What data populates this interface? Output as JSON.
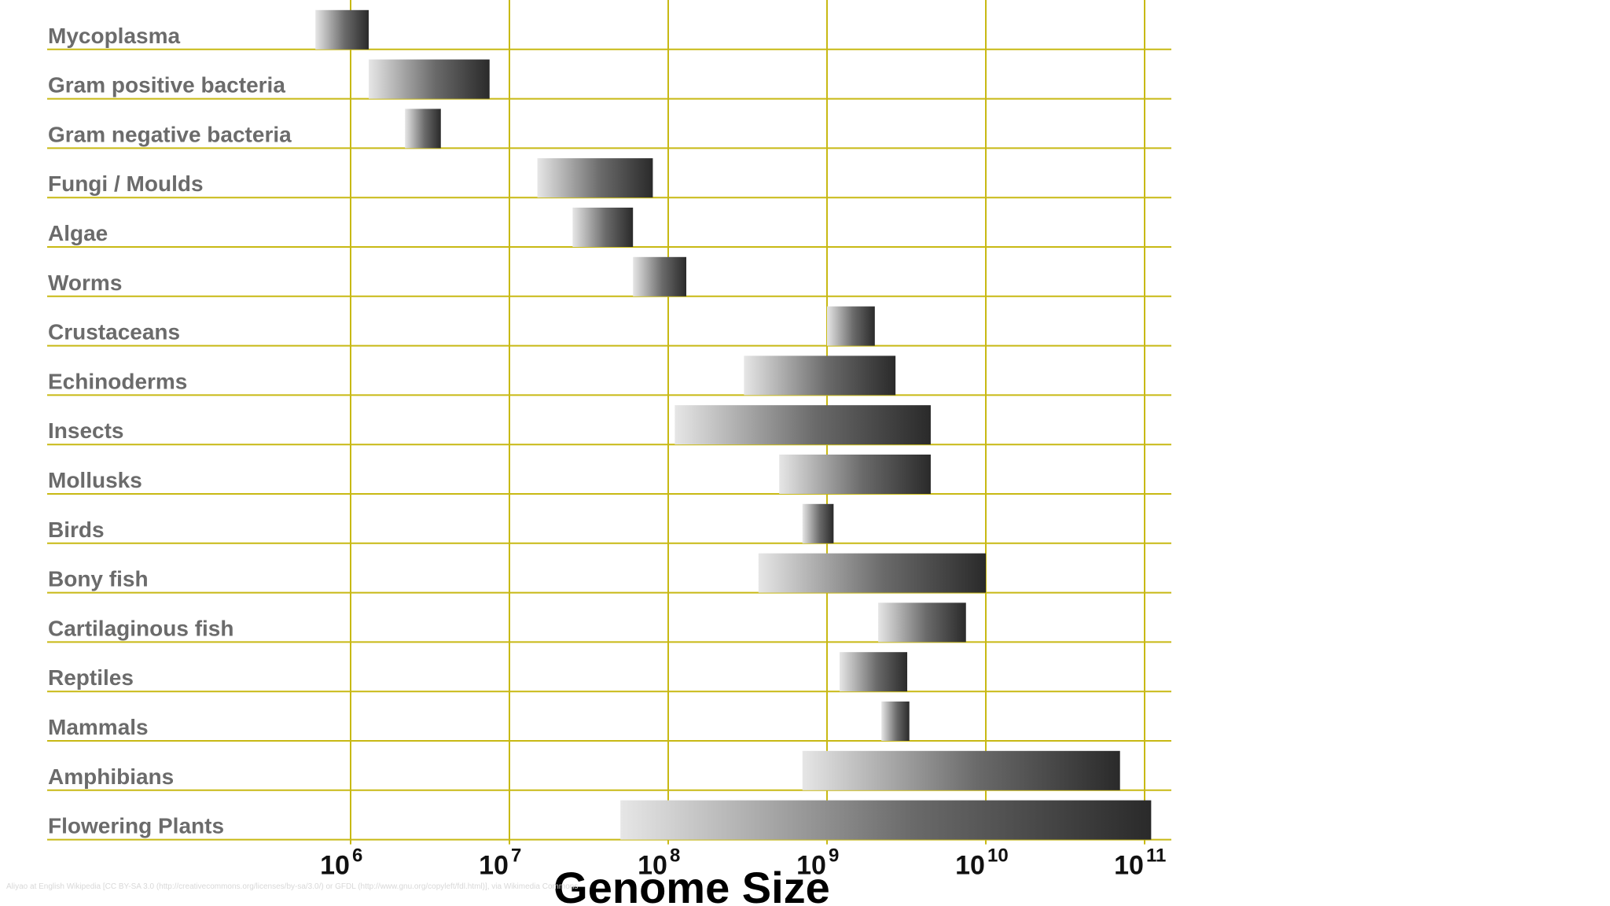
{
  "chart_data": {
    "type": "bar",
    "orientation": "horizontal",
    "value_kind": "range",
    "xlabel": "Genome Size",
    "xscale": "log",
    "xlim": [
      1000000,
      100000000000
    ],
    "xticks": [
      {
        "base": "10",
        "exp": "6",
        "value": 1000000
      },
      {
        "base": "10",
        "exp": "7",
        "value": 10000000
      },
      {
        "base": "10",
        "exp": "8",
        "value": 100000000
      },
      {
        "base": "10",
        "exp": "9",
        "value": 1000000000
      },
      {
        "base": "10",
        "exp": "10",
        "value": 10000000000
      },
      {
        "base": "10",
        "exp": "11",
        "value": 100000000000
      }
    ],
    "grid": true,
    "categories": [
      "Mycoplasma",
      "Gram positive bacteria",
      "Gram negative bacteria",
      "Fungi / Moulds",
      "Algae",
      "Worms",
      "Crustaceans",
      "Echinoderms",
      "Insects",
      "Mollusks",
      "Birds",
      "Bony fish",
      "Cartilaginous fish",
      "Reptiles",
      "Mammals",
      "Amphibians",
      "Flowering Plants"
    ],
    "ranges": [
      [
        600000,
        1300000
      ],
      [
        1300000,
        7500000
      ],
      [
        2200000,
        3700000
      ],
      [
        15000000,
        80000000
      ],
      [
        25000000,
        60000000
      ],
      [
        60000000,
        130000000
      ],
      [
        1000000000,
        2000000000
      ],
      [
        300000000,
        2700000000
      ],
      [
        110000000,
        4500000000
      ],
      [
        500000000,
        4500000000
      ],
      [
        700000000,
        1100000000
      ],
      [
        370000000,
        10000000000
      ],
      [
        2100000000,
        7500000000
      ],
      [
        1200000000,
        3200000000
      ],
      [
        2200000000,
        3300000000
      ],
      [
        700000000,
        70000000000
      ],
      [
        50000000,
        110000000000
      ]
    ]
  },
  "credit": "Aliyao at English Wikipedia [CC BY-SA 3.0 (http://creativecommons.org/licenses/by-sa/3.0/) or GFDL (http://www.gnu.org/copyleft/fdl.html)], via Wikimedia Commons",
  "colors": {
    "grid": "#c8b914",
    "bar_light": "#e6e6e6",
    "bar_dark": "#111111",
    "label": "#6b6b6b"
  }
}
